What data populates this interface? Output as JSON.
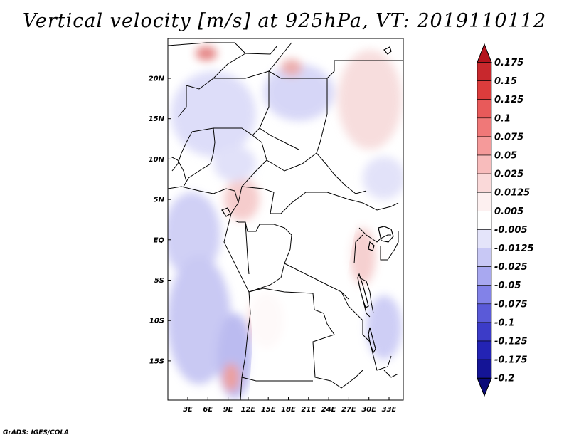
{
  "title": "Vertical velocity [m/s] at 925hPa, VT: 2019110112",
  "credit": "GrADS: IGES/COLA",
  "map": {
    "lat_labels": [
      "20N",
      "15N",
      "10N",
      "5N",
      "EQ",
      "5S",
      "10S",
      "15S"
    ],
    "lon_labels": [
      "3E",
      "6E",
      "9E",
      "12E",
      "15E",
      "18E",
      "21E",
      "24E",
      "27E",
      "30E",
      "33E"
    ]
  },
  "colorbar": {
    "labels": [
      "0.175",
      "0.15",
      "0.125",
      "0.1",
      "0.075",
      "0.05",
      "0.025",
      "0.0125",
      "0.005",
      "-0.005",
      "-0.0125",
      "-0.025",
      "-0.05",
      "-0.075",
      "-0.1",
      "-0.125",
      "-0.175",
      "-0.2"
    ],
    "colors": [
      "#b4141e",
      "#c8282d",
      "#dc3c3c",
      "#e85a5a",
      "#f07878",
      "#f59a9a",
      "#f8bcbc",
      "#fad9d9",
      "#fdf0f0",
      "#ffffff",
      "#e4e4fa",
      "#c8c8f5",
      "#a8a8f0",
      "#8282e8",
      "#5a5ad8",
      "#3c3cc8",
      "#2323b4",
      "#141496",
      "#0a0a78"
    ]
  }
}
